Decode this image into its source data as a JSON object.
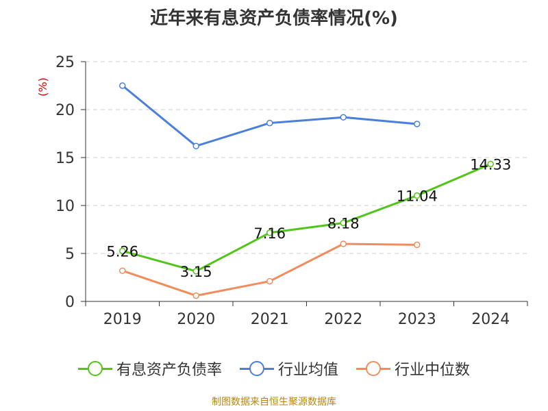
{
  "title": "近年来有息资产负债率情况(%)",
  "source": "制图数据来自恒生聚源数据库",
  "chart_data": {
    "type": "line",
    "title": "近年来有息资产负债率情况(%)",
    "ylabel": "(%)",
    "xlabel": "",
    "categories": [
      "2019",
      "2020",
      "2021",
      "2022",
      "2023",
      "2024"
    ],
    "ylim": [
      0,
      25
    ],
    "yticks": [
      0,
      5,
      10,
      15,
      20,
      25
    ],
    "grid": true,
    "legend_position": "bottom",
    "series": [
      {
        "name": "有息资产负债率",
        "color": "#52c41a",
        "values": [
          5.26,
          3.15,
          7.16,
          8.18,
          11.04,
          14.33
        ],
        "labels": [
          "5.26",
          "3.15",
          "7.16",
          "8.18",
          "11.04",
          "14.33"
        ]
      },
      {
        "name": "行业均值",
        "color": "#4a7fdb",
        "values": [
          22.5,
          16.2,
          18.6,
          19.2,
          18.5,
          null
        ]
      },
      {
        "name": "行业中位数",
        "color": "#f28c5a",
        "values": [
          3.2,
          0.6,
          2.1,
          6.0,
          5.9,
          null
        ]
      }
    ]
  }
}
